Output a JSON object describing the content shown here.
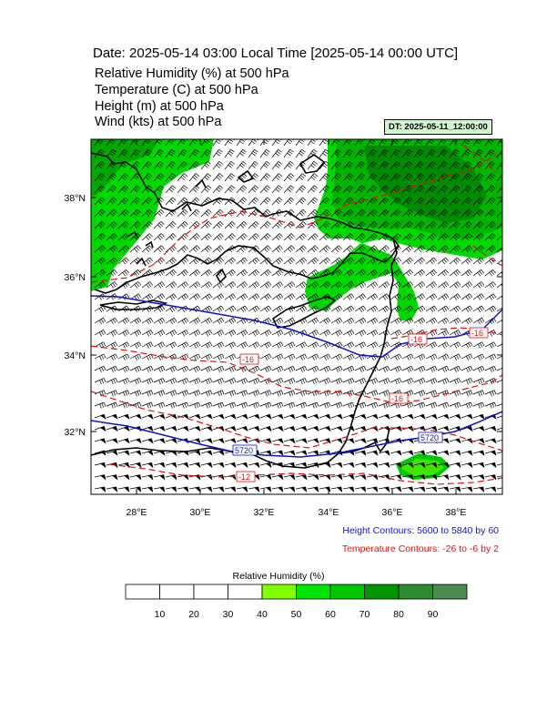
{
  "header": {
    "title": "Date: 2025-05-14  03:00 Local Time [2025-05-14  00:00 UTC]",
    "variables": [
      "Relative Humidity   (%)     at   500 hPa",
      "Temperature   (C)     at   500 hPa",
      "Height   (m)     at   500 hPa",
      "Wind   (kts)     at   500 hPa"
    ],
    "dt_badge": "DT: 2025-05-11_12:00:00"
  },
  "map": {
    "lat_labels": [
      "38°N",
      "36°N",
      "34°N",
      "32°N"
    ],
    "lon_labels": [
      "28°E",
      "30°E",
      "32°E",
      "34°E",
      "36°E",
      "38°E"
    ],
    "height_contour_labels": [
      "5720",
      "5720"
    ],
    "temperature_contour_labels": [
      "-16",
      "-16",
      "-16",
      "-16",
      "-12"
    ],
    "colors": {
      "height_contour": "#1010c8",
      "temperature_contour": "#e01010",
      "coastline": "#000000",
      "wind_barb": "#000000"
    }
  },
  "legend_notes": {
    "height": "Height Contours: 5600 to 5840 by 60",
    "temperature": "Temperature Contours: -26 to -6 by 2"
  },
  "colorbar": {
    "title": "Relative Humidity  (%)",
    "labels": [
      "10",
      "20",
      "30",
      "40",
      "50",
      "60",
      "70",
      "80",
      "90"
    ],
    "colors": [
      "#ffffff",
      "#ffffff",
      "#ffffff",
      "#ffffff",
      "#80ff00",
      "#00e600",
      "#00c800",
      "#009600",
      "#2d8c2d",
      "#4b8c50"
    ]
  }
}
